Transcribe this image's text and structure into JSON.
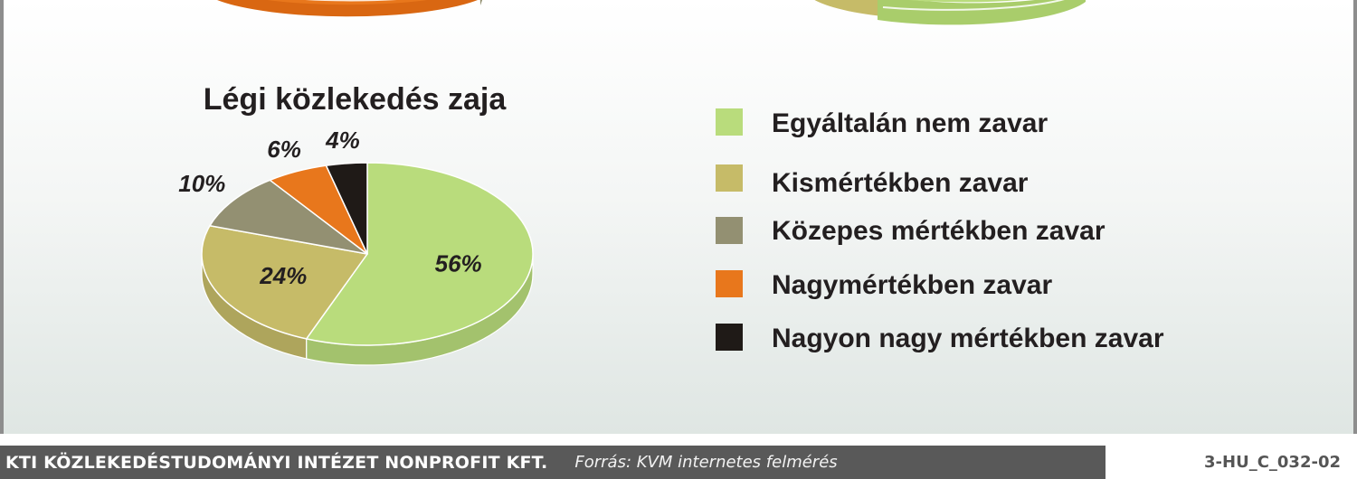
{
  "colors": {
    "light_green": "#b9dc7c",
    "olive": "#c6bb68",
    "gray_olive": "#939072",
    "orange": "#e8771c",
    "black": "#1f1a17"
  },
  "chart_data": {
    "type": "pie",
    "title": "Légi közlekedés zaja",
    "slices": [
      {
        "label": "Egyáltalán nem zavar",
        "value": 56,
        "display": "56%",
        "color": "#b9dc7c"
      },
      {
        "label": "Kismértékben zavar",
        "value": 24,
        "display": "24%",
        "color": "#c6bb68"
      },
      {
        "label": "Közepes mértékben zavar",
        "value": 10,
        "display": "10%",
        "color": "#939072"
      },
      {
        "label": "Nagymértékben zavar",
        "value": 6,
        "display": "6%",
        "color": "#e8771c"
      },
      {
        "label": "Nagyon nagy mértékben zavar",
        "value": 4,
        "display": "4%",
        "color": "#1f1a17"
      }
    ],
    "legend": {
      "placement": "right",
      "entries": [
        "Egyáltalán nem zavar",
        "Kismértékben zavar",
        "Közepes mértékben zavar",
        "Nagymértékben zavar",
        "Nagyon nagy mértékben zavar"
      ]
    }
  },
  "footer": {
    "organization": "KTI KÖZLEKEDÉSTUDOMÁNYI INTÉZET NONPROFIT KFT.",
    "source": "Forrás: KVM internetes felmérés",
    "figure_code": "3-HU_C_032-02"
  }
}
